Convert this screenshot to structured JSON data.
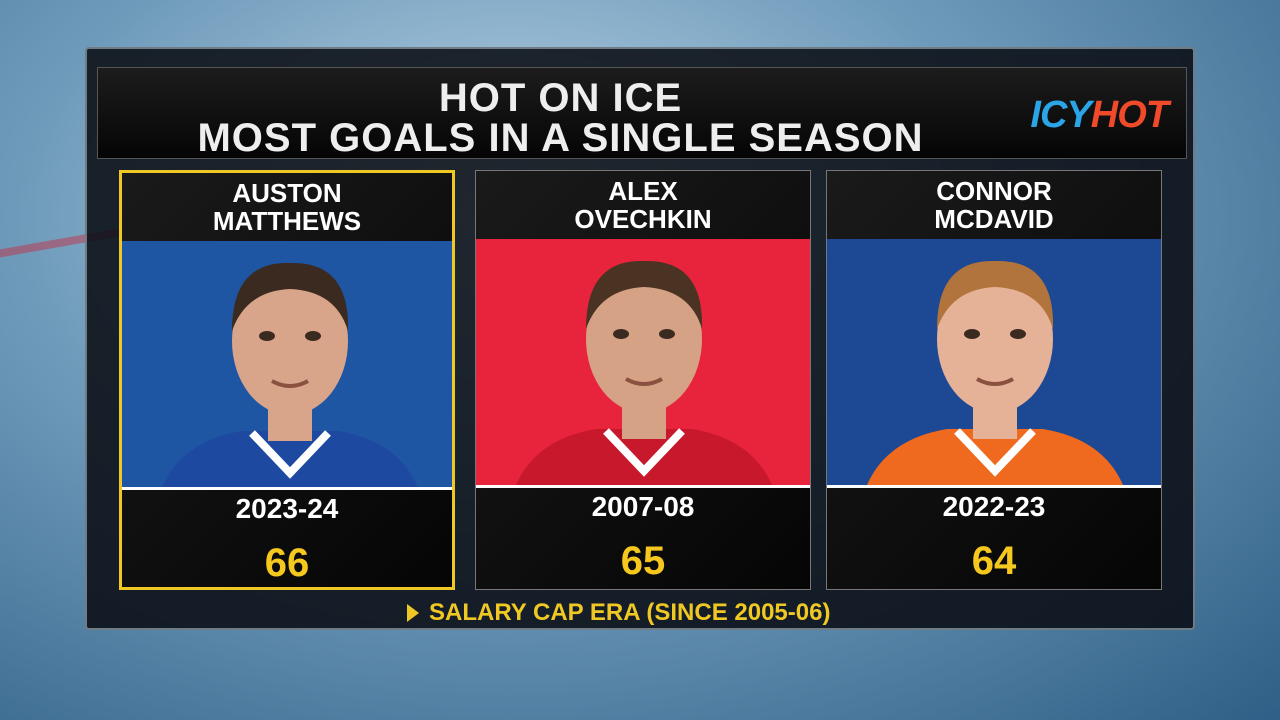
{
  "header": {
    "title_lines": [
      "HOT ON ICE",
      "MOST GOALS IN A SINGLE SEASON"
    ],
    "logo": {
      "icy": "ICY",
      "hot": "HOT"
    }
  },
  "cards": [
    {
      "name_lines": [
        "AUSTON",
        "MATTHEWS"
      ],
      "season": "2023-24",
      "goals": 66
    },
    {
      "name_lines": [
        "ALEX",
        "OVECHKIN"
      ],
      "season": "2007-08",
      "goals": 65
    },
    {
      "name_lines": [
        "CONNOR",
        "MCDAVID"
      ],
      "season": "2022-23",
      "goals": 64
    }
  ],
  "footer": "SALARY CAP ERA (SINCE 2005-06)"
}
